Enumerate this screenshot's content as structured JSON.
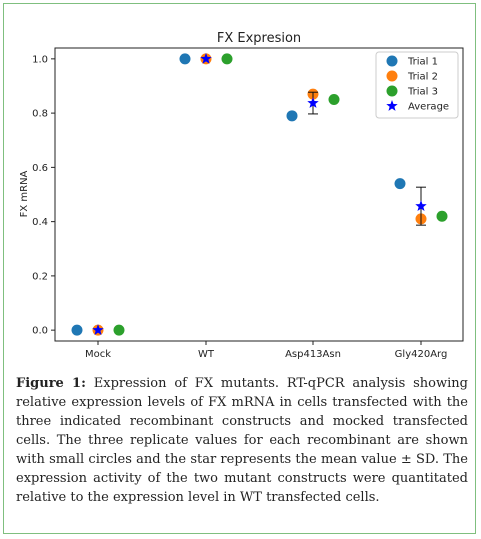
{
  "colors": {
    "frame_border": "#7fbf7f",
    "trial1": "#1f77b4",
    "trial2": "#ff7f0e",
    "trial3": "#2ca02c",
    "average": "#0000ff"
  },
  "chart_data": {
    "type": "scatter",
    "title": "FX Expresion",
    "xlabel": "",
    "ylabel": "FX mRNA",
    "categories": [
      "Mock",
      "WT",
      "Asp413Asn",
      "Gly420Arg"
    ],
    "ylim": [
      -0.04,
      1.04
    ],
    "yticks": [
      "0.0",
      "0.2",
      "0.4",
      "0.6",
      "0.8",
      "1.0"
    ],
    "legend_position": "top-right",
    "series": [
      {
        "name": "Trial 1",
        "marker": "circle",
        "color": "#1f77b4",
        "values": [
          0.0,
          1.0,
          0.79,
          0.54
        ]
      },
      {
        "name": "Trial 2",
        "marker": "circle",
        "color": "#ff7f0e",
        "values": [
          0.0,
          1.0,
          0.87,
          0.41
        ]
      },
      {
        "name": "Trial 3",
        "marker": "circle",
        "color": "#2ca02c",
        "values": [
          0.0,
          1.0,
          0.85,
          0.42
        ]
      },
      {
        "name": "Average",
        "marker": "star",
        "color": "#0000ff",
        "values": [
          0.0,
          1.0,
          0.837,
          0.457
        ],
        "sd": [
          0.0,
          0.0,
          0.04,
          0.07
        ]
      }
    ]
  },
  "caption": {
    "label": "Figure 1:",
    "text": " Expression of FX mutants. RT-qPCR analysis showing relative expression levels of FX mRNA in cells transfected with the three indicated recombinant constructs and mocked transfected cells. The three replicate values for each recombinant are shown with small circles and the star represents the mean value ± SD. The expression activity of the two mutant constructs were quantitated relative to the expression level in WT transfected cells."
  }
}
